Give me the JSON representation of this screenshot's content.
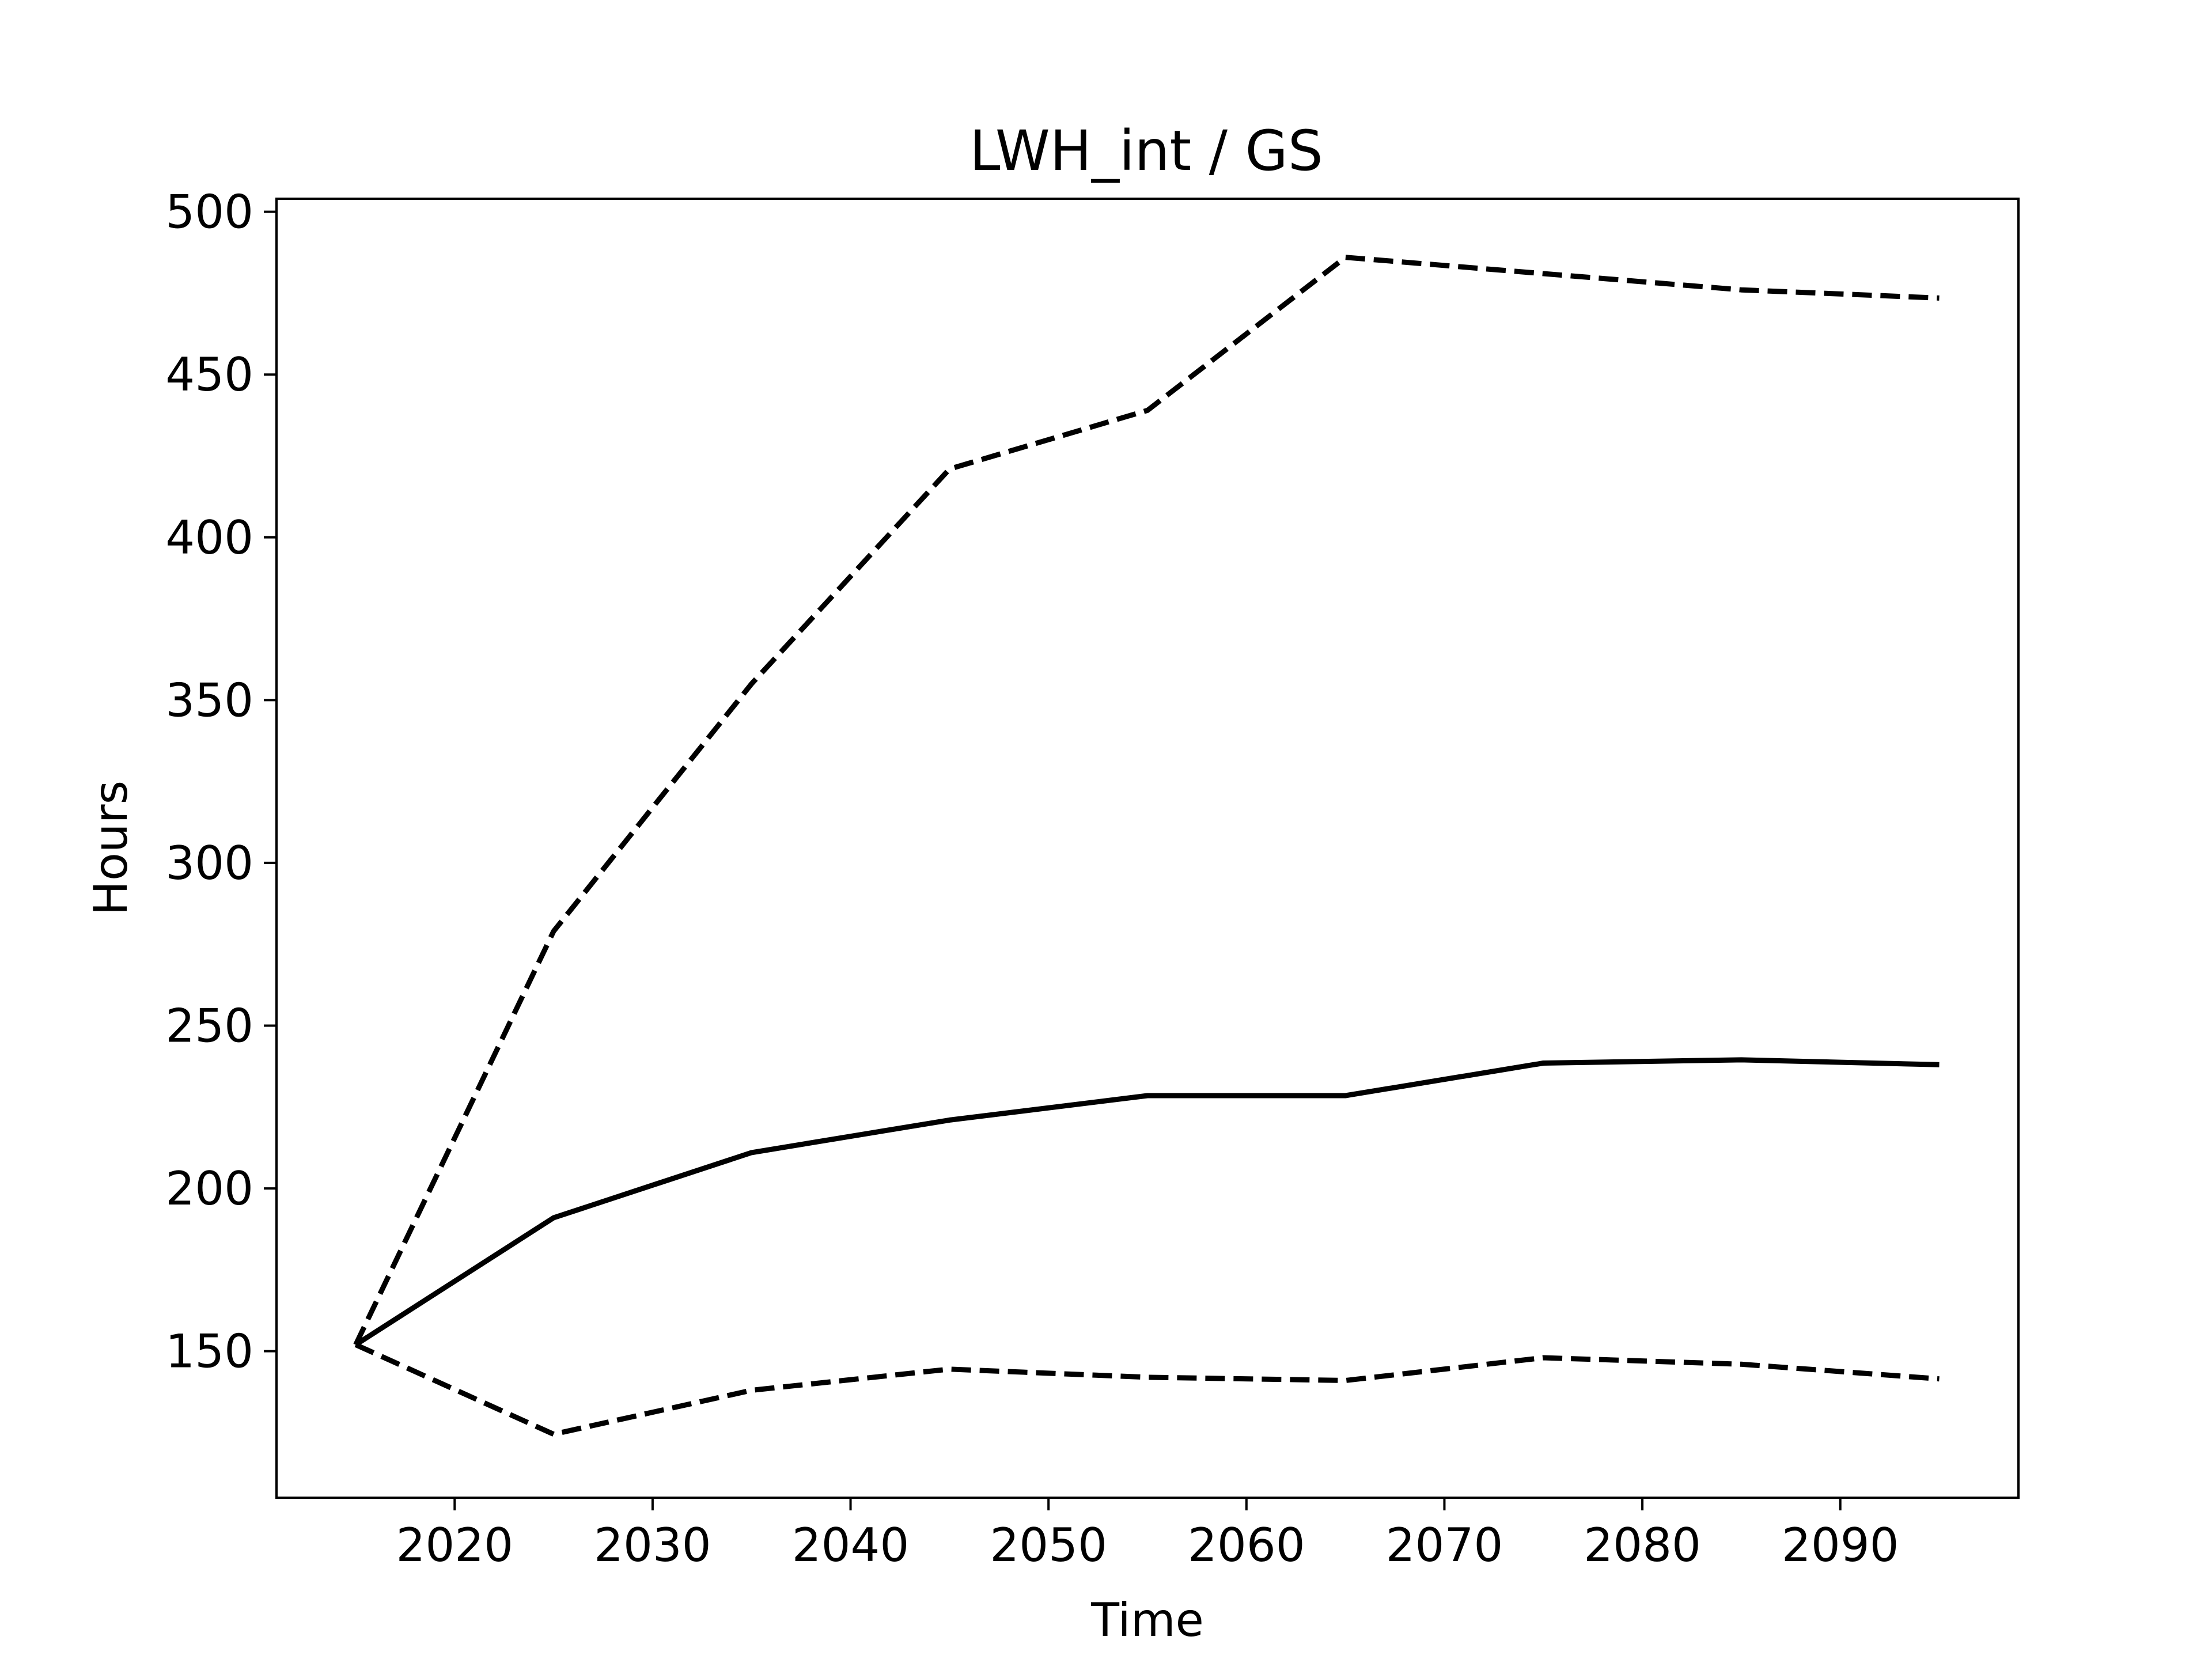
{
  "chart_data": {
    "type": "line",
    "title": "LWH_int / GS",
    "xlabel": "Time",
    "ylabel": "Hours",
    "xlim": [
      2011,
      2099
    ],
    "ylim": [
      105,
      504
    ],
    "xticks": [
      2020,
      2030,
      2040,
      2050,
      2060,
      2070,
      2080,
      2090
    ],
    "yticks": [
      150,
      200,
      250,
      300,
      350,
      400,
      450,
      500
    ],
    "grid": false,
    "legend": "none",
    "x": [
      2015,
      2025,
      2035,
      2045,
      2055,
      2065,
      2075,
      2085,
      2095
    ],
    "series": [
      {
        "style": "solid",
        "color": "#000000",
        "values": [
          152,
          191,
          211,
          221,
          228.5,
          228.5,
          238.5,
          239.5,
          238
        ]
      },
      {
        "style": "dashed",
        "color": "#000000",
        "values": [
          152,
          279,
          355,
          421,
          439,
          486,
          481,
          476,
          473.5
        ]
      },
      {
        "style": "dashed",
        "color": "#000000",
        "values": [
          152,
          124.5,
          138,
          144.5,
          142,
          141,
          148,
          146,
          141.5
        ]
      }
    ]
  }
}
